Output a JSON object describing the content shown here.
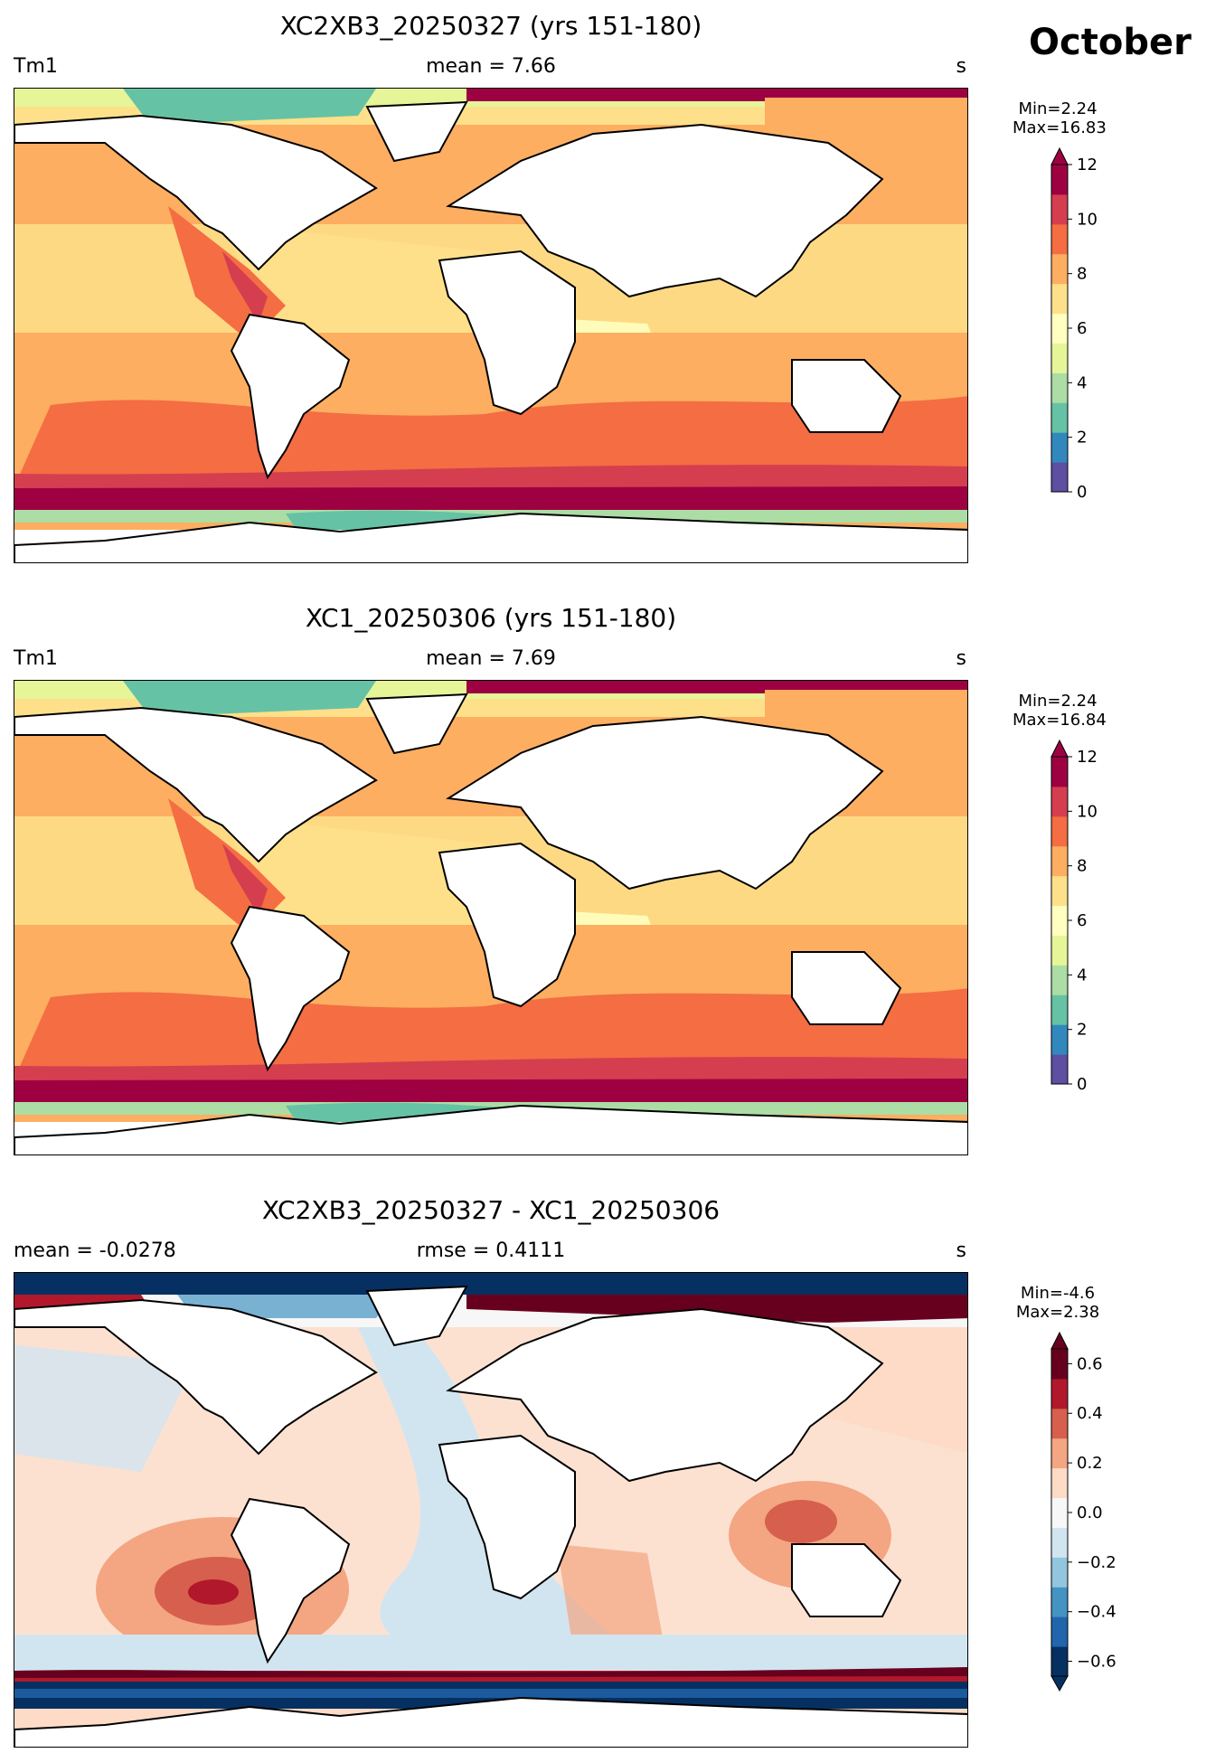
{
  "month": "October",
  "panels": [
    {
      "title": "XC2XB3_20250327 (yrs 151-180)",
      "left_label": "Tm1",
      "center_label": "mean = 7.66",
      "right_label": "s",
      "min_label": "Min=2.24",
      "max_label": "Max=16.83",
      "colorbar": {
        "ticks": [
          "0",
          "2",
          "4",
          "6",
          "8",
          "10",
          "12"
        ],
        "colors": [
          "#5e4fa2",
          "#3288bd",
          "#66c2a5",
          "#abdda4",
          "#e6f598",
          "#ffffbf",
          "#fee08b",
          "#fdae61",
          "#f46d43",
          "#d53e4f",
          "#9e0142"
        ],
        "extend": "max"
      }
    },
    {
      "title": "XC1_20250306 (yrs 151-180)",
      "left_label": "Tm1",
      "center_label": "mean = 7.69",
      "right_label": "s",
      "min_label": "Min=2.24",
      "max_label": "Max=16.84",
      "colorbar": {
        "ticks": [
          "0",
          "2",
          "4",
          "6",
          "8",
          "10",
          "12"
        ],
        "colors": [
          "#5e4fa2",
          "#3288bd",
          "#66c2a5",
          "#abdda4",
          "#e6f598",
          "#ffffbf",
          "#fee08b",
          "#fdae61",
          "#f46d43",
          "#d53e4f",
          "#9e0142"
        ],
        "extend": "max"
      }
    },
    {
      "title": "XC2XB3_20250327 - XC1_20250306",
      "left_label": "mean = -0.0278",
      "center_label": "rmse = 0.4111",
      "right_label": "s",
      "min_label": "Min=-4.6",
      "max_label": "Max=2.38",
      "colorbar": {
        "ticks": [
          "−0.6",
          "−0.4",
          "−0.2",
          "0.0",
          "0.2",
          "0.4",
          "0.6"
        ],
        "colors": [
          "#053061",
          "#2166ac",
          "#4393c3",
          "#92c5de",
          "#d1e5f0",
          "#f7f7f7",
          "#fddbc7",
          "#f4a582",
          "#d6604d",
          "#b2182b",
          "#67001f"
        ],
        "extend": "both"
      }
    }
  ]
}
